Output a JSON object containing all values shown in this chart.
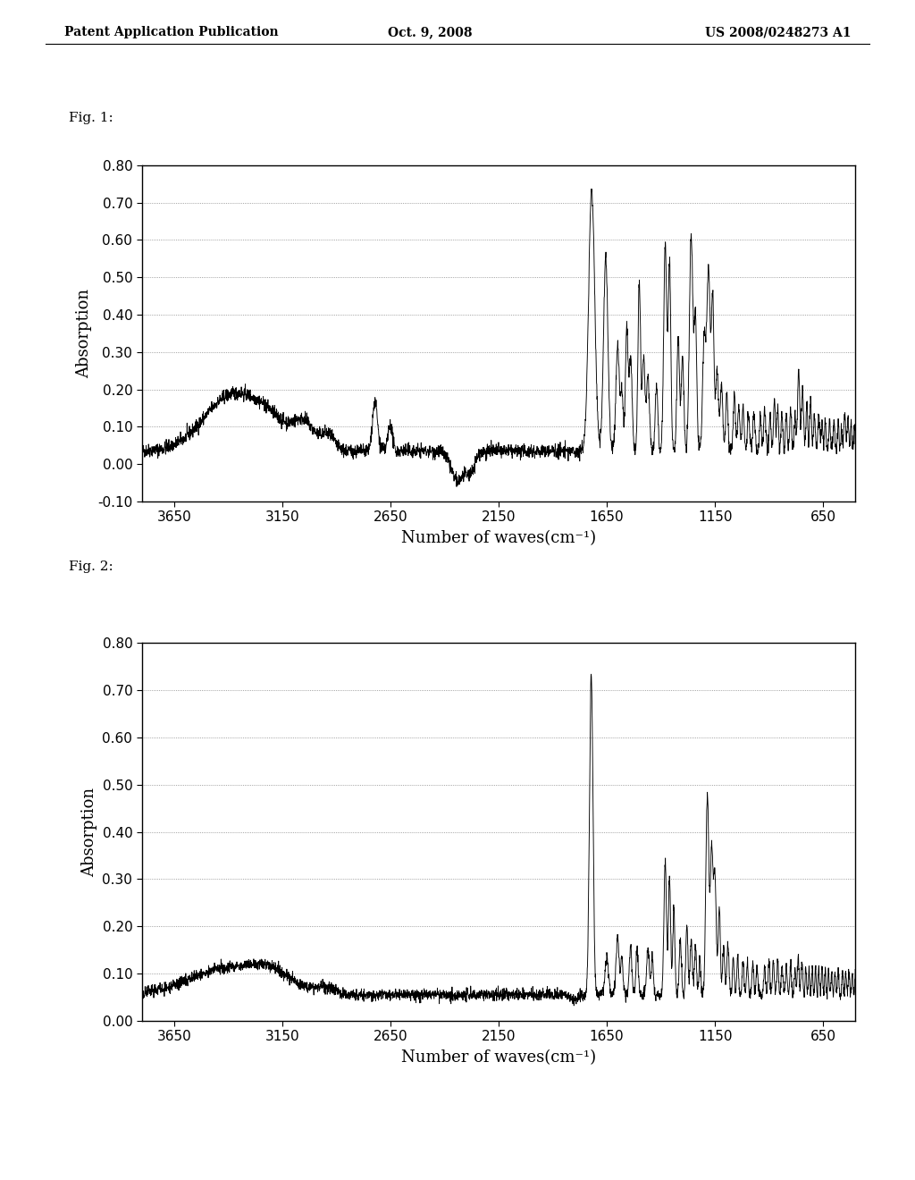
{
  "header_left": "Patent Application Publication",
  "header_center": "Oct. 9, 2008",
  "header_right": "US 2008/0248273 A1",
  "fig1_label": "Fig. 1:",
  "fig2_label": "Fig. 2:",
  "xlabel": "Number of waves(cm⁻¹)",
  "ylabel": "Absorption",
  "xticks": [
    3650,
    3150,
    2650,
    2150,
    1650,
    1150,
    650
  ],
  "fig1_ylim": [
    -0.1,
    0.8
  ],
  "fig2_ylim": [
    0.0,
    0.8
  ],
  "fig1_yticks": [
    -0.1,
    0.0,
    0.1,
    0.2,
    0.3,
    0.4,
    0.5,
    0.6,
    0.7,
    0.8
  ],
  "fig2_yticks": [
    0.0,
    0.1,
    0.2,
    0.3,
    0.4,
    0.5,
    0.6,
    0.7,
    0.8
  ],
  "fig1_grid_yticks": [
    0.1,
    0.2,
    0.3,
    0.4,
    0.5,
    0.6,
    0.7
  ],
  "fig2_grid_yticks": [
    0.1,
    0.2,
    0.3,
    0.4,
    0.5,
    0.6,
    0.7
  ],
  "background_color": "#ffffff",
  "line_color": "#000000",
  "grid_color": "#555555",
  "header_fontsize": 10,
  "label_fontsize": 13,
  "tick_fontsize": 11,
  "fig_label_fontsize": 11
}
